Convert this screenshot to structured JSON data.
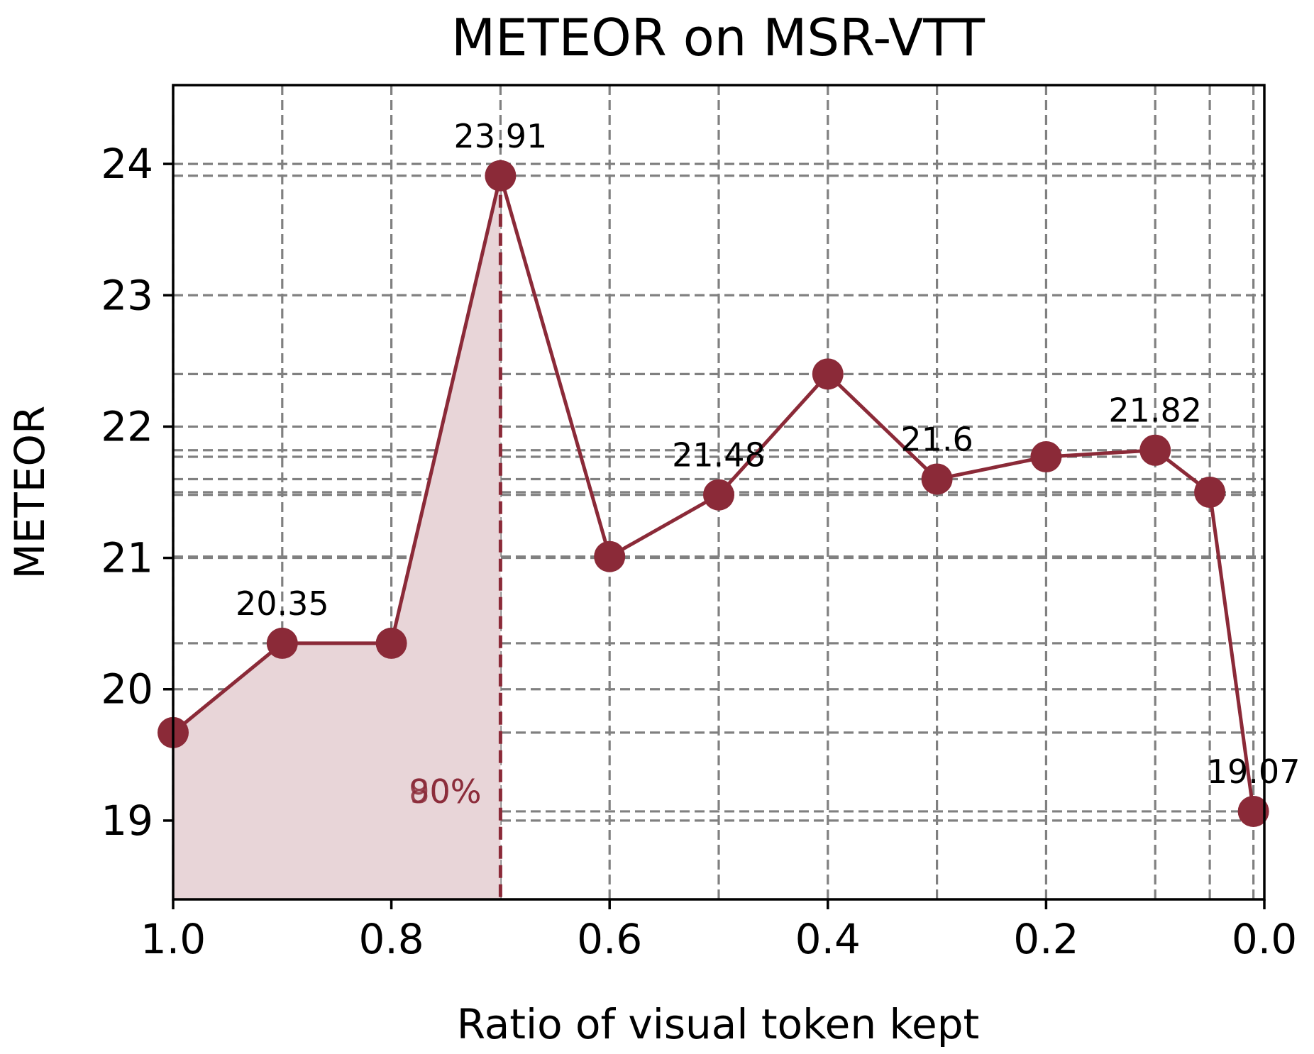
{
  "chart_data": {
    "type": "line",
    "title": "METEOR on MSR-VTT",
    "xlabel": "Ratio of visual token kept",
    "ylabel": "METEOR",
    "xlim": [
      1.0,
      0.0
    ],
    "ylim": [
      18.4,
      24.6
    ],
    "x_reversed": true,
    "xticks": [
      1.0,
      0.8,
      0.6,
      0.4,
      0.2,
      0.0
    ],
    "xtick_labels": [
      "1.0",
      "0.8",
      "0.6",
      "0.4",
      "0.2",
      "0.0"
    ],
    "yticks": [
      19,
      20,
      21,
      22,
      23,
      24
    ],
    "ytick_labels": [
      "19",
      "20",
      "21",
      "22",
      "23",
      "24"
    ],
    "grid": true,
    "series": [
      {
        "x": [
          1.0,
          0.9,
          0.8,
          0.7,
          0.6,
          0.5,
          0.4,
          0.3,
          0.2,
          0.1,
          0.05,
          0.01
        ],
        "y": [
          19.67,
          20.35,
          20.35,
          23.91,
          21.01,
          21.48,
          22.4,
          21.6,
          21.77,
          21.82,
          21.5,
          19.07
        ]
      }
    ],
    "color": "#8b2a38",
    "fill_color": "#e8d5d8",
    "data_labels": [
      {
        "x": 0.9,
        "y": 20.35,
        "text": "20.35"
      },
      {
        "x": 0.7,
        "y": 23.91,
        "text": "23.91"
      },
      {
        "x": 0.5,
        "y": 21.48,
        "text": "21.48"
      },
      {
        "x": 0.3,
        "y": 21.6,
        "text": "21.6"
      },
      {
        "x": 0.1,
        "y": 21.82,
        "text": "21.82"
      },
      {
        "x": 0.01,
        "y": 19.07,
        "text": "19.07"
      }
    ],
    "shaded_region": {
      "x_from": 1.0,
      "x_to": 0.7
    },
    "marker_line_x": 0.7,
    "annotation_labels": [
      "90%",
      "80%"
    ]
  }
}
